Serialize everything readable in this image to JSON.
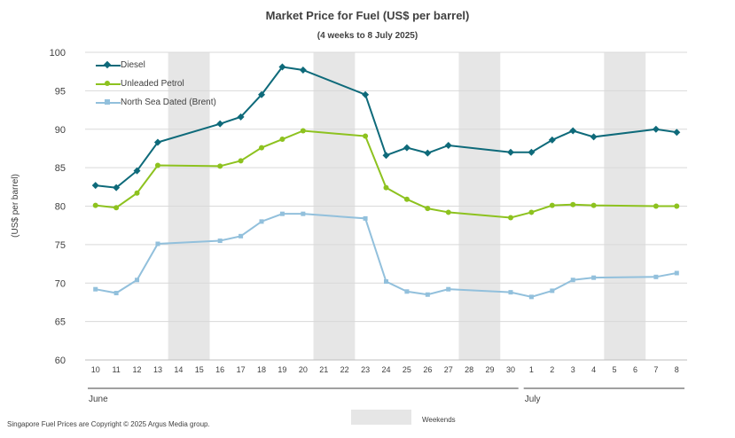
{
  "chart_data": {
    "type": "line",
    "title": "Market Price for Fuel (US$ per barrel)",
    "subtitle": "(4 weeks to 8 July 2025)",
    "ylabel": "(US$ per barrel)",
    "xlabel": "",
    "ylim": [
      60,
      100
    ],
    "yticks": [
      60,
      65,
      70,
      75,
      80,
      85,
      90,
      95,
      100
    ],
    "grid": true,
    "legend_position": "top-left",
    "categories": [
      "10",
      "11",
      "12",
      "13",
      "14",
      "15",
      "16",
      "17",
      "18",
      "19",
      "20",
      "21",
      "22",
      "23",
      "24",
      "25",
      "26",
      "27",
      "28",
      "29",
      "30",
      "1",
      "2",
      "3",
      "4",
      "5",
      "6",
      "7",
      "8"
    ],
    "month_groups": [
      {
        "label": "June",
        "start": "10",
        "end": "30"
      },
      {
        "label": "July",
        "start": "1",
        "end": "8"
      }
    ],
    "weekends": [
      [
        "14",
        "15"
      ],
      [
        "21",
        "22"
      ],
      [
        "28",
        "29"
      ],
      [
        "5",
        "6"
      ]
    ],
    "series": [
      {
        "name": "Diesel",
        "color": "#0e6a7a",
        "marker": "diamond",
        "values": [
          82.7,
          82.4,
          84.6,
          88.3,
          null,
          null,
          90.7,
          91.6,
          94.5,
          98.1,
          97.7,
          null,
          null,
          94.5,
          86.6,
          87.6,
          86.9,
          87.9,
          null,
          null,
          87.0,
          87.0,
          88.6,
          89.8,
          89.0,
          null,
          null,
          90.0,
          89.6
        ]
      },
      {
        "name": "Unleaded Petrol",
        "color": "#8dc21f",
        "marker": "circle",
        "values": [
          80.1,
          79.8,
          81.7,
          85.3,
          null,
          null,
          85.2,
          85.9,
          87.6,
          88.7,
          89.8,
          null,
          null,
          89.1,
          82.4,
          80.9,
          79.7,
          79.2,
          null,
          null,
          78.5,
          79.2,
          80.1,
          80.2,
          80.1,
          null,
          null,
          80.0,
          80.0
        ]
      },
      {
        "name": "North Sea Dated (Brent)",
        "color": "#92c0dc",
        "marker": "square",
        "values": [
          69.2,
          68.7,
          70.4,
          75.1,
          null,
          null,
          75.5,
          76.1,
          78.0,
          79.0,
          79.0,
          null,
          null,
          78.4,
          70.2,
          68.9,
          68.5,
          69.2,
          null,
          null,
          68.8,
          68.2,
          69.0,
          70.4,
          70.7,
          null,
          null,
          70.8,
          71.3
        ]
      }
    ],
    "weekend_legend": "Weekends",
    "footer": "Singapore Fuel Prices are Copyright © 2025 Argus Media group."
  }
}
